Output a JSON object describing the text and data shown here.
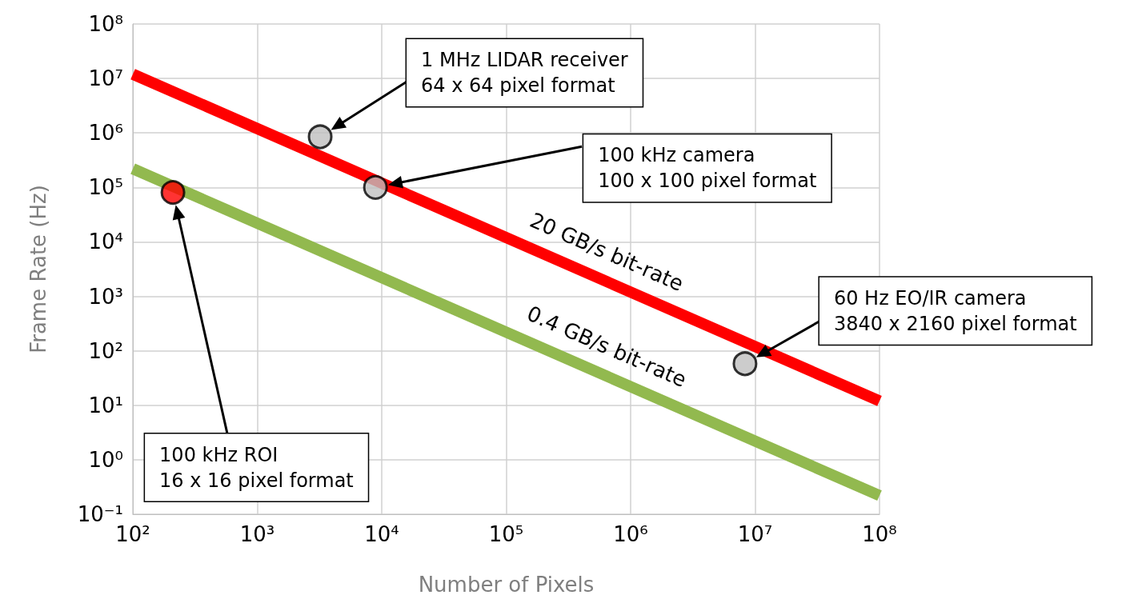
{
  "chart_data": {
    "type": "line",
    "xlabel": "Number of Pixels",
    "ylabel": "Frame Rate (Hz)",
    "log": "xy",
    "grid": true,
    "legend": false,
    "xlim": [
      100,
      100000000
    ],
    "xticks": [
      {
        "value": 100,
        "label": "10²"
      },
      {
        "value": 1000,
        "label": "10³"
      },
      {
        "value": 10000,
        "label": "10⁴"
      },
      {
        "value": 100000,
        "label": "10⁵"
      },
      {
        "value": 1000000,
        "label": "10⁶"
      },
      {
        "value": 10000000,
        "label": "10⁷"
      },
      {
        "value": 100000000,
        "label": "10⁸"
      }
    ],
    "ylim": [
      0.1,
      100000000
    ],
    "yticks": [
      {
        "value": 0.1,
        "label": "10⁻¹"
      },
      {
        "value": 1,
        "label": "10⁰"
      },
      {
        "value": 10,
        "label": "10¹"
      },
      {
        "value": 100,
        "label": "10²"
      },
      {
        "value": 1000,
        "label": "10³"
      },
      {
        "value": 10000,
        "label": "10⁴"
      },
      {
        "value": 100000,
        "label": "10⁵"
      },
      {
        "value": 1000000,
        "label": "10⁶"
      },
      {
        "value": 10000000,
        "label": "10⁷"
      },
      {
        "value": 100000000,
        "label": "10⁸"
      }
    ],
    "series": [
      {
        "name": "20 GB/s bit-rate",
        "color": "#ff0000",
        "marker": "none",
        "x": [
          100,
          100000000
        ],
        "values": [
          12000000,
          12
        ]
      },
      {
        "name": "0.4 GB/s bit-rate",
        "color": "#92b94f",
        "marker": "none",
        "x": [
          100,
          100000000
        ],
        "values": [
          220000,
          0.22
        ]
      },
      {
        "type": "scatter",
        "marker": "circle",
        "x": [
          3200,
          8900,
          8300000,
          210
        ],
        "values": [
          850000,
          100000,
          58,
          81000
        ],
        "colors": [
          "#bfbfbf",
          "#bfbfbf",
          "#bfbfbf",
          "#ff0000"
        ]
      }
    ],
    "annotations": [
      "1 MHz LIDAR receiver\n64 x 64 pixel format",
      "100 kHz camera\n100 x 100 pixel format",
      "60 Hz EO/IR camera\n3840 x 2160 pixel format",
      "100 kHz ROI\n16 x 16 pixel format"
    ]
  }
}
